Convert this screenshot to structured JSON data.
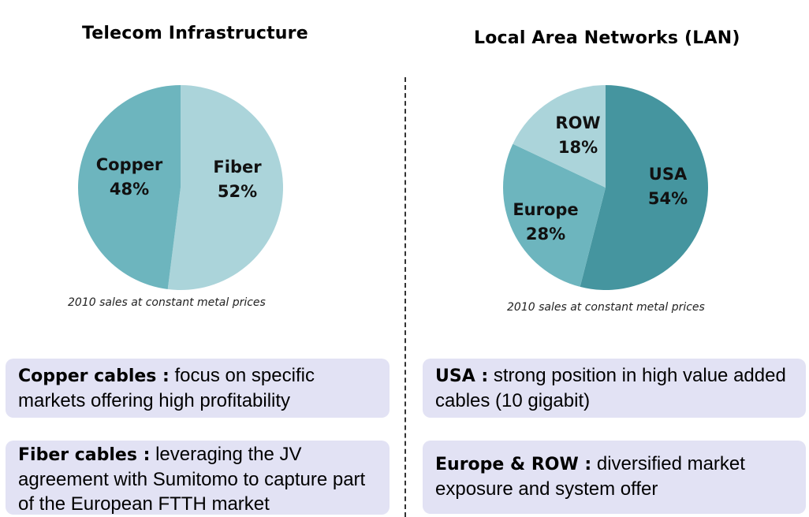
{
  "chart_data": [
    {
      "type": "pie",
      "title": "Telecom Infrastructure",
      "caption": "2010 sales at constant metal prices",
      "slices": [
        {
          "name": "Fiber",
          "value": 52,
          "label": "52%",
          "color": "#abd4da"
        },
        {
          "name": "Copper",
          "value": 48,
          "label": "48%",
          "color": "#6db5be"
        }
      ]
    },
    {
      "type": "pie",
      "title": "Local Area Networks (LAN)",
      "caption": "2010 sales at constant metal prices",
      "slices": [
        {
          "name": "USA",
          "value": 54,
          "label": "54%",
          "color": "#45959f"
        },
        {
          "name": "Europe",
          "value": 28,
          "label": "28%",
          "color": "#6db5be"
        },
        {
          "name": "ROW",
          "value": 18,
          "label": "18%",
          "color": "#abd4da"
        }
      ]
    }
  ],
  "notes": {
    "copper": {
      "heading": "Copper cables :",
      "text": "focus on specific markets offering high profitability"
    },
    "fiber": {
      "heading": "Fiber cables :",
      "text": "leveraging the JV agreement with Sumitomo to capture part of the European FTTH market"
    },
    "usa": {
      "heading": "USA :",
      "text": "strong position in high value added cables (10 gigabit)"
    },
    "europe": {
      "heading": "Europe & ROW :",
      "text": "diversified market exposure and system offer"
    }
  },
  "colors": {
    "note_background": "#e2e2f4",
    "divider": "#333333"
  }
}
